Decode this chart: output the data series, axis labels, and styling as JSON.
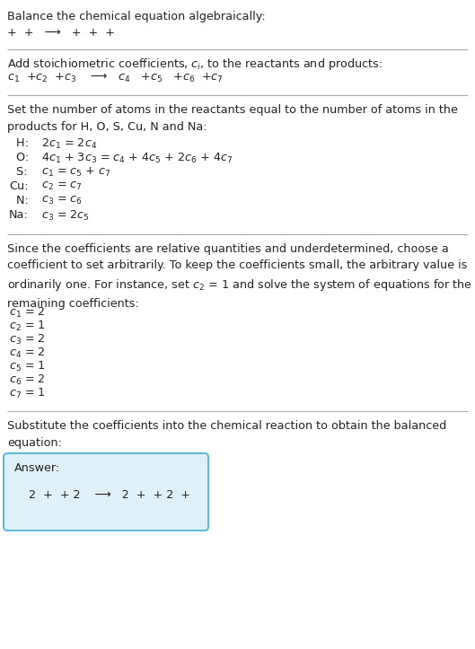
{
  "title": "Balance the chemical equation algebraically:",
  "line1": "+  +   ⟶   +  +  +",
  "section1_title_a": "Add stoichiometric coefficients, ",
  "section1_title_b": ", to the reactants and products:",
  "section1_eq": "$c_1$  +$c_2$  +$c_3$    ⟶   $c_4$   +$c_5$   +$c_6$  +$c_7$",
  "section2_title": "Set the number of atoms in the reactants equal to the number of atoms in the\nproducts for H, O, S, Cu, N and Na:",
  "eq_labels": [
    "  H:",
    "  O:",
    "  S:",
    "Cu:",
    "  N:",
    "Na:"
  ],
  "eq_formulas": [
    "2$c_1$ = 2$c_4$",
    "4$c_1$ + 3$c_3$ = $c_4$ + 4$c_5$ + 2$c_6$ + 4$c_7$",
    "$c_1$ = $c_5$ + $c_7$",
    "$c_2$ = $c_7$",
    "$c_3$ = $c_6$",
    "$c_3$ = 2$c_5$"
  ],
  "section3_text": "Since the coefficients are relative quantities and underdetermined, choose a\ncoefficient to set arbitrarily. To keep the coefficients small, the arbitrary value is\nordinarily one. For instance, set $c_2$ = 1 and solve the system of equations for the\nremaining coefficients:",
  "coefficients": [
    "$c_1$ = 2",
    "$c_2$ = 1",
    "$c_3$ = 2",
    "$c_4$ = 2",
    "$c_5$ = 1",
    "$c_6$ = 2",
    "$c_7$ = 1"
  ],
  "section4_text": "Substitute the coefficients into the chemical reaction to obtain the balanced\nequation:",
  "answer_label": "Answer:",
  "answer_eq": "2  +  + 2    ⟶   2  +  + 2  +",
  "bg_color": "#ffffff",
  "text_color": "#222222",
  "box_bg": "#dff0f7",
  "box_border": "#5ab8d4",
  "divider_color": "#aaaaaa"
}
